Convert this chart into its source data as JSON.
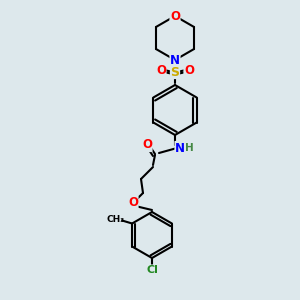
{
  "bg_color": "#dde8ec",
  "bond_color": "#000000",
  "bond_lw": 1.5,
  "aromatic_lw": 1.5,
  "atom_colors": {
    "O": "#ff0000",
    "N": "#0000ff",
    "S": "#ccaa00",
    "Cl": "#228822",
    "C": "#000000",
    "H": "#448844"
  },
  "font_size": 7.5
}
